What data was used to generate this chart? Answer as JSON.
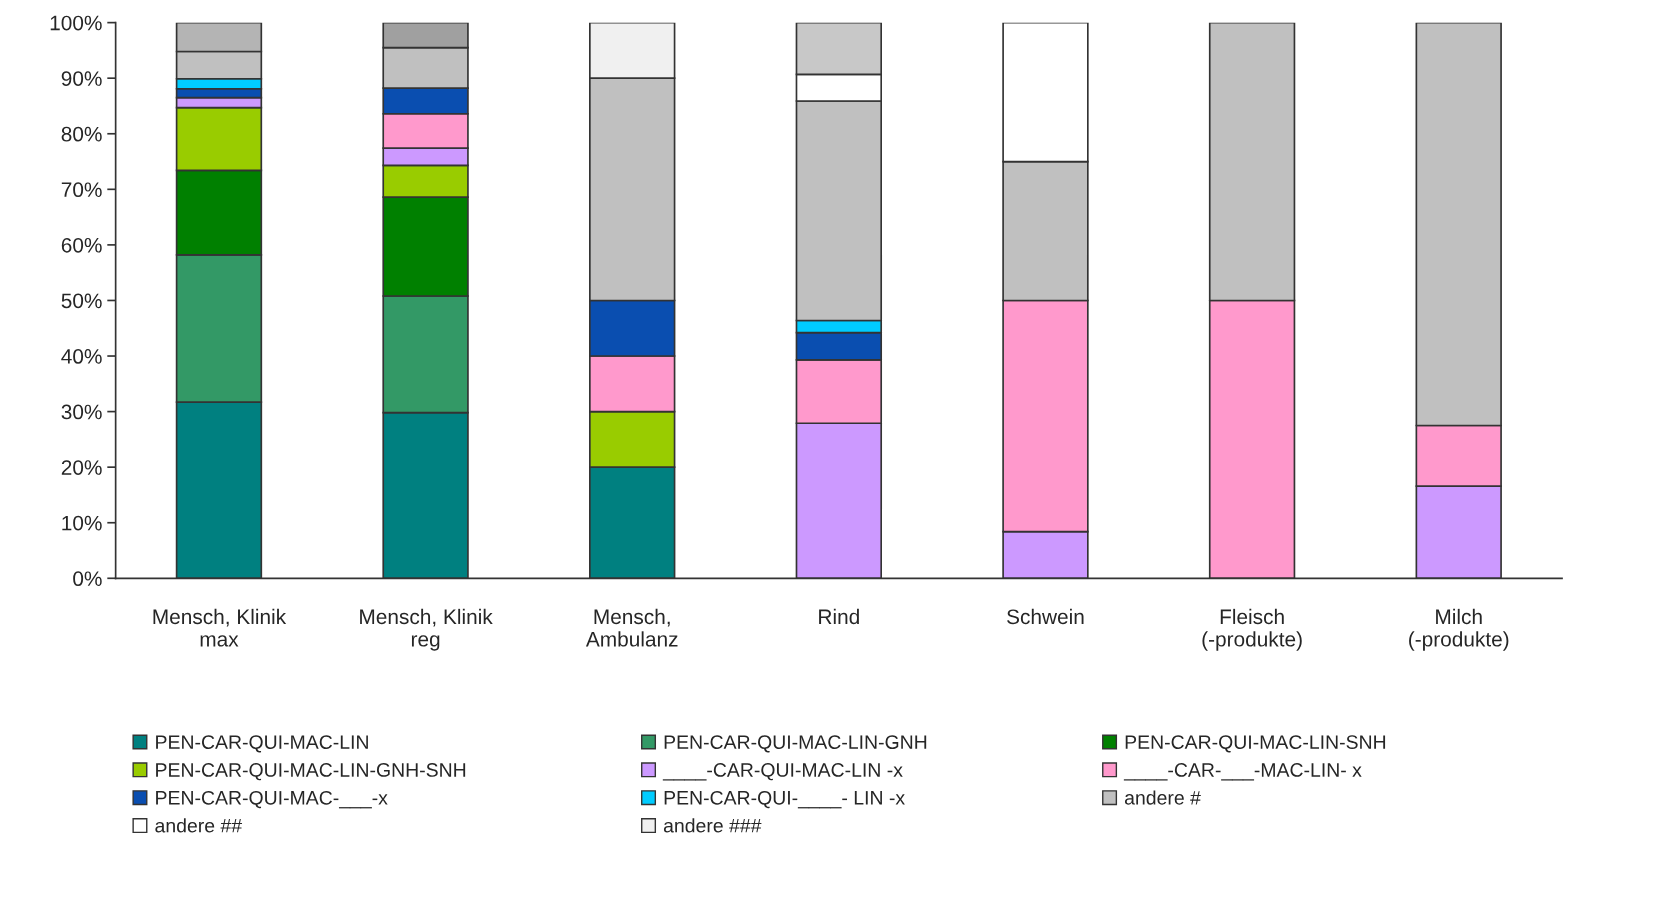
{
  "chart_data": {
    "type": "bar",
    "stacked": true,
    "categories": [
      "Mensch, Klinik\nmax",
      "Mensch, Klinik\nreg",
      "Mensch,\nAmbulanz",
      "Rind",
      "Schwein",
      "Fleisch\n(-produkte)",
      "Milch\n(-produkte)"
    ],
    "series": [
      {
        "name": "PEN-CAR-QUI-MAC-LIN",
        "color": "#008080",
        "values": [
          31.7,
          29.8,
          20,
          null,
          null,
          null,
          null
        ]
      },
      {
        "name": "PEN-CAR-QUI-MAC-LIN-GNH",
        "color": "#339966",
        "values": [
          26.5,
          21,
          null,
          null,
          null,
          null,
          null
        ]
      },
      {
        "name": "PEN-CAR-QUI-MAC-LIN-SNH",
        "color": "#008000",
        "values": [
          15.2,
          17.8,
          null,
          null,
          null,
          null,
          null
        ]
      },
      {
        "name": "PEN-CAR-QUI-MAC-LIN-GNH-SNH",
        "color": "#99cc00",
        "values": [
          11.3,
          5.7,
          10,
          null,
          null,
          null,
          null
        ]
      },
      {
        "name": "____-CAR-QUI-MAC-LIN -x",
        "color": "#cc99ff",
        "values": [
          1.8,
          3.1,
          null,
          27.9,
          8.4,
          null,
          16.6
        ]
      },
      {
        "name": "____-CAR-___-MAC-LIN- x",
        "color": "#ff99cc",
        "values": [
          null,
          6.2,
          10,
          11.4,
          41.6,
          50,
          10.9
        ]
      },
      {
        "name": "PEN-CAR-QUI-MAC-___-x",
        "color": "#0a4eb0",
        "values": [
          1.6,
          4.6,
          10,
          4.9,
          null,
          null,
          null
        ]
      },
      {
        "name": "PEN-CAR-QUI-____- LIN -x",
        "color": "#00ccff",
        "values": [
          1.8,
          null,
          null,
          2.2,
          null,
          null,
          null
        ]
      },
      {
        "name": "andere #",
        "color": "#c0c0c0",
        "values": [
          4.9,
          7.3,
          40,
          39.5,
          25,
          50,
          72.5
        ]
      },
      {
        "name": "andere ##",
        "color": "#ffffff",
        "values": [
          null,
          null,
          null,
          4.8,
          25,
          null,
          null
        ]
      },
      {
        "name": "andere ###",
        "color": "#f0f0f0",
        "values": [
          null,
          null,
          10,
          null,
          null,
          null,
          null
        ]
      },
      {
        "color": "#b4b4b4",
        "values": [
          5.2,
          null,
          null,
          null,
          null,
          null,
          null
        ]
      },
      {
        "color": "#a0a0a0",
        "values": [
          null,
          4.5,
          null,
          null,
          null,
          null,
          null
        ]
      },
      {
        "color": "#c8c8c8",
        "values": [
          null,
          null,
          null,
          9.3,
          null,
          null,
          null
        ]
      }
    ],
    "ylim": [
      0,
      100
    ],
    "yticks": [
      {
        "value": 0,
        "label": "0%"
      },
      {
        "value": 10,
        "label": "10%"
      },
      {
        "value": 20,
        "label": "20%"
      },
      {
        "value": 30,
        "label": "30%"
      },
      {
        "value": 40,
        "label": "40%"
      },
      {
        "value": 50,
        "label": "50%"
      },
      {
        "value": 60,
        "label": "60%"
      },
      {
        "value": 70,
        "label": "70%"
      },
      {
        "value": 80,
        "label": "80%"
      },
      {
        "value": 90,
        "label": "90%"
      },
      {
        "value": 100,
        "label": "100%"
      }
    ],
    "grid": false,
    "legend": "bottom"
  }
}
